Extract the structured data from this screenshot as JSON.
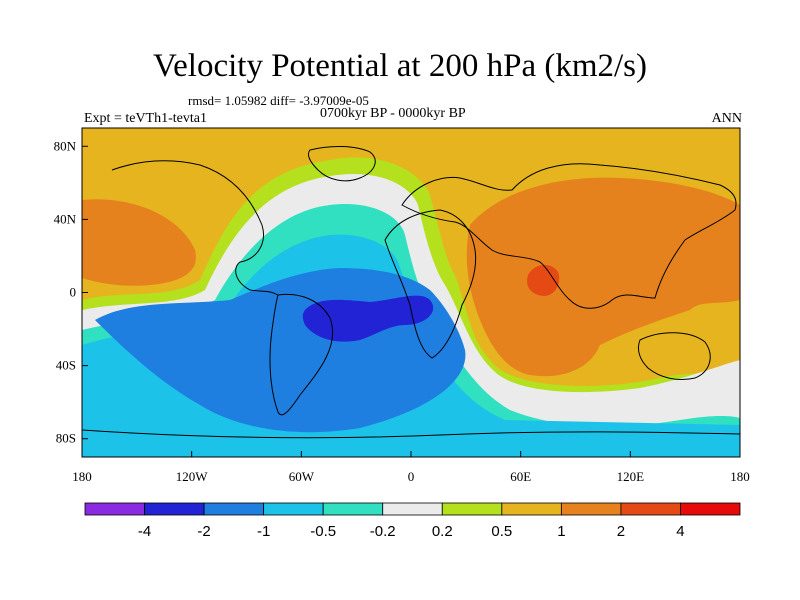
{
  "title": "Velocity Potential at 200 hPa (km2/s)",
  "stats": "rmsd= 1.05982 diff= -3.97009e-05",
  "period": "0700kyr BP - 0000kyr BP",
  "experiment": "Expt = teVTh1-tevta1",
  "season": "ANN",
  "x_ticks": [
    {
      "value": -180,
      "label": "180"
    },
    {
      "value": -120,
      "label": "120W"
    },
    {
      "value": -60,
      "label": "60W"
    },
    {
      "value": 0,
      "label": "0"
    },
    {
      "value": 60,
      "label": "60E"
    },
    {
      "value": 120,
      "label": "120E"
    },
    {
      "value": 180,
      "label": "180"
    }
  ],
  "y_ticks": [
    {
      "value": 80,
      "label": "80N"
    },
    {
      "value": 40,
      "label": "40N"
    },
    {
      "value": 0,
      "label": "0"
    },
    {
      "value": -40,
      "label": "40S"
    },
    {
      "value": -80,
      "label": "80S"
    }
  ],
  "colorbar": {
    "colors": [
      "#8a2be2",
      "#2323d6",
      "#1e7fe0",
      "#1cc2e8",
      "#30e0c0",
      "#ebebeb",
      "#b4e01e",
      "#e6b41e",
      "#e6821e",
      "#e64a14",
      "#e60a0a"
    ],
    "labels": [
      "-4",
      "-2",
      "-1",
      "-0.5",
      "-0.2",
      "0.2",
      "0.5",
      "1",
      "2",
      "4"
    ]
  }
}
